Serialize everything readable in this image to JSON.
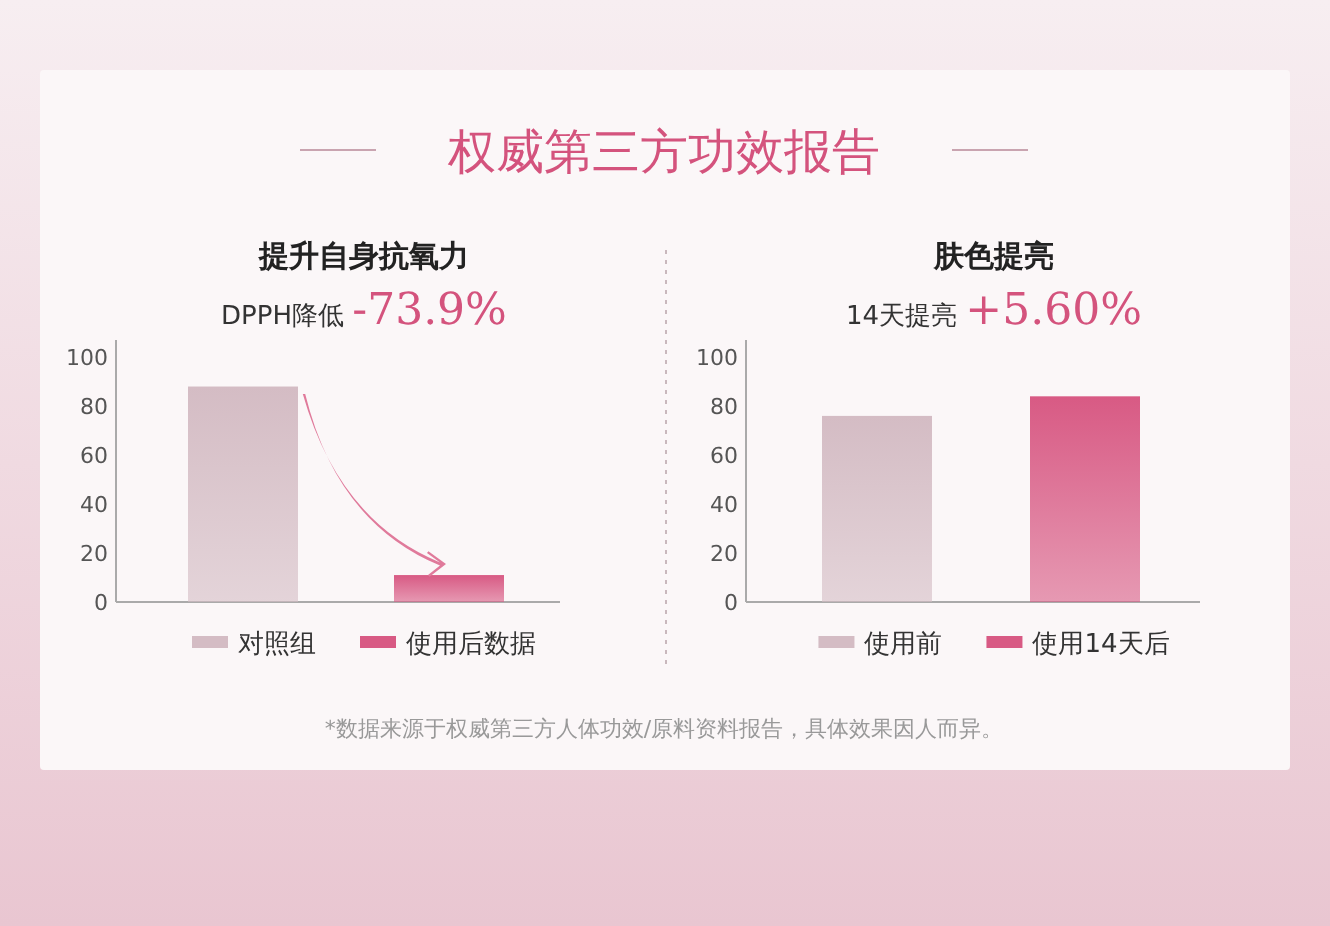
{
  "chart_data": [
    {
      "type": "bar",
      "title": "提升自身抗氧力",
      "subtitle": "DPPH降低 -73.9%",
      "annotations": [
        "权威第三方功效报告",
        "*数据来源于权威第三方人体功效/原料资料报告，具体效果因人而异。"
      ],
      "categories": [
        null,
        null
      ],
      "series": [
        {
          "name": "对照组",
          "color": "#d4bcc4",
          "values": [
            88,
            null
          ]
        },
        {
          "name": "使用后数据",
          "color": "#d85a84",
          "values": [
            null,
            11
          ]
        }
      ],
      "ylim": [
        0,
        107
      ],
      "yticks": [
        0,
        20,
        40,
        60,
        80,
        100
      ],
      "legend": "bottom"
    },
    {
      "type": "bar",
      "title": "肤色提亮",
      "subtitle": "14天提亮 +5.60%",
      "categories": [
        null,
        null
      ],
      "series": [
        {
          "name": "使用前",
          "color": "#d4bcc4",
          "values": [
            76,
            null
          ]
        },
        {
          "name": "使用14天后",
          "color": "#d85a84",
          "values": [
            null,
            84
          ]
        }
      ],
      "ylim": [
        0,
        107
      ],
      "yticks": [
        0,
        20,
        40,
        60,
        80,
        100
      ],
      "legend": "bottom"
    }
  ]
}
